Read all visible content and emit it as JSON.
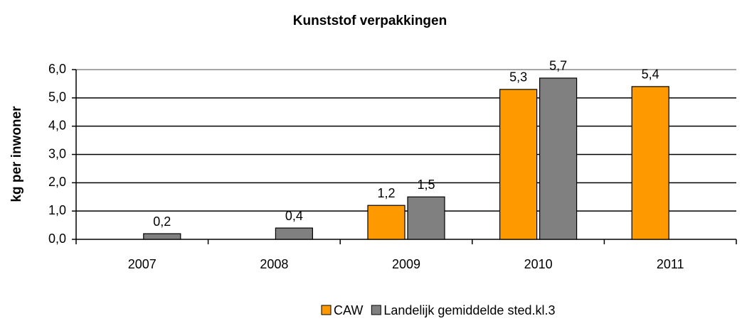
{
  "chart_data": {
    "type": "bar",
    "title": "Kunststof verpakkingen",
    "y_label": "kg per inwoner",
    "categories": [
      "2007",
      "2008",
      "2009",
      "2010",
      "2011"
    ],
    "series": [
      {
        "name": "CAW",
        "color": "#ff9900",
        "values": [
          null,
          null,
          1.2,
          5.3,
          5.4
        ],
        "value_labels": [
          null,
          null,
          "1,2",
          "5,3",
          "5,4"
        ]
      },
      {
        "name": "Landelijk gemiddelde sted.kl.3",
        "color": "#808080",
        "values": [
          0.2,
          0.4,
          1.5,
          5.7,
          null
        ],
        "value_labels": [
          "0,2",
          "0,4",
          "1,5",
          "5,7",
          null
        ]
      }
    ],
    "ylim": [
      0,
      6
    ],
    "yticks": [
      {
        "value": 0,
        "label": "0,0"
      },
      {
        "value": 1,
        "label": "1,0"
      },
      {
        "value": 2,
        "label": "2,0"
      },
      {
        "value": 3,
        "label": "3,0"
      },
      {
        "value": 4,
        "label": "4,0"
      },
      {
        "value": 5,
        "label": "5,0"
      },
      {
        "value": 6,
        "label": "6,0"
      }
    ],
    "grid": true
  }
}
